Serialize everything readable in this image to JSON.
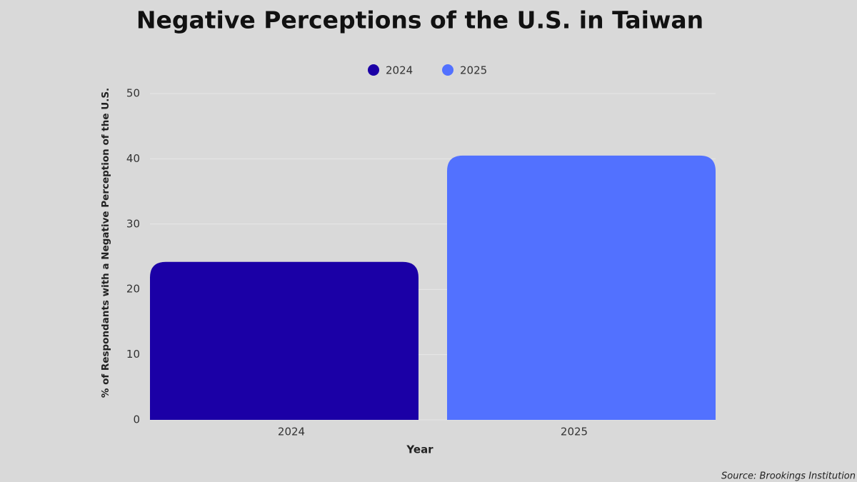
{
  "chart_data": {
    "type": "bar",
    "title": "Negative Perceptions of the U.S. in Taiwan",
    "x_label": "Year",
    "y_label": "% of Respondants with a Negative Perception of the U.S.",
    "source": "Source: Brookings Institution",
    "categories": [
      "2024",
      "2025"
    ],
    "series": [
      {
        "name": "2024",
        "color": "#1b00a6",
        "values": [
          24.2,
          null
        ]
      },
      {
        "name": "2025",
        "color": "#5271ff",
        "values": [
          null,
          40.5
        ]
      }
    ],
    "ylim": [
      0,
      50
    ],
    "yticks": [
      0,
      10,
      20,
      30,
      40,
      50
    ],
    "grid": true,
    "legend": "top"
  }
}
